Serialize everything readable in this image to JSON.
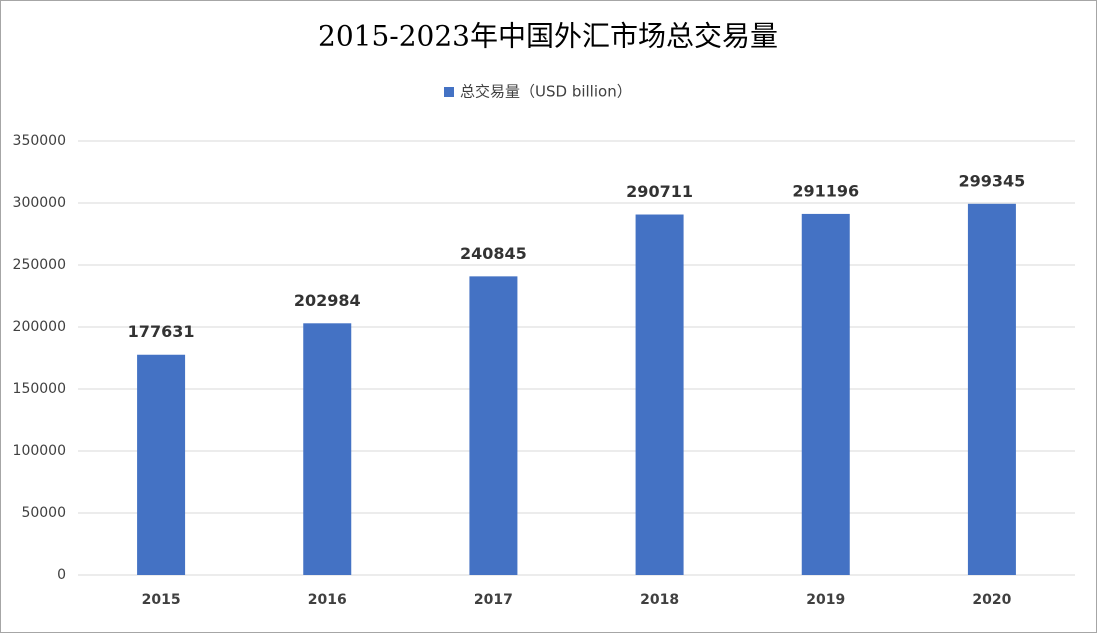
{
  "chart_data": {
    "type": "bar",
    "title": "2015-2023年中国外汇市场总交易量",
    "categories": [
      "2015",
      "2016",
      "2017",
      "2018",
      "2019",
      "2020"
    ],
    "series": [
      {
        "name": "总交易量（USD billion）",
        "color": "#4472c4",
        "values": [
          177631,
          202984,
          240845,
          290711,
          291196,
          299345
        ]
      }
    ],
    "ylim": [
      0,
      350000
    ],
    "yticks": [
      0,
      50000,
      100000,
      150000,
      200000,
      250000,
      300000,
      350000
    ],
    "grid": true,
    "legend": "top"
  }
}
